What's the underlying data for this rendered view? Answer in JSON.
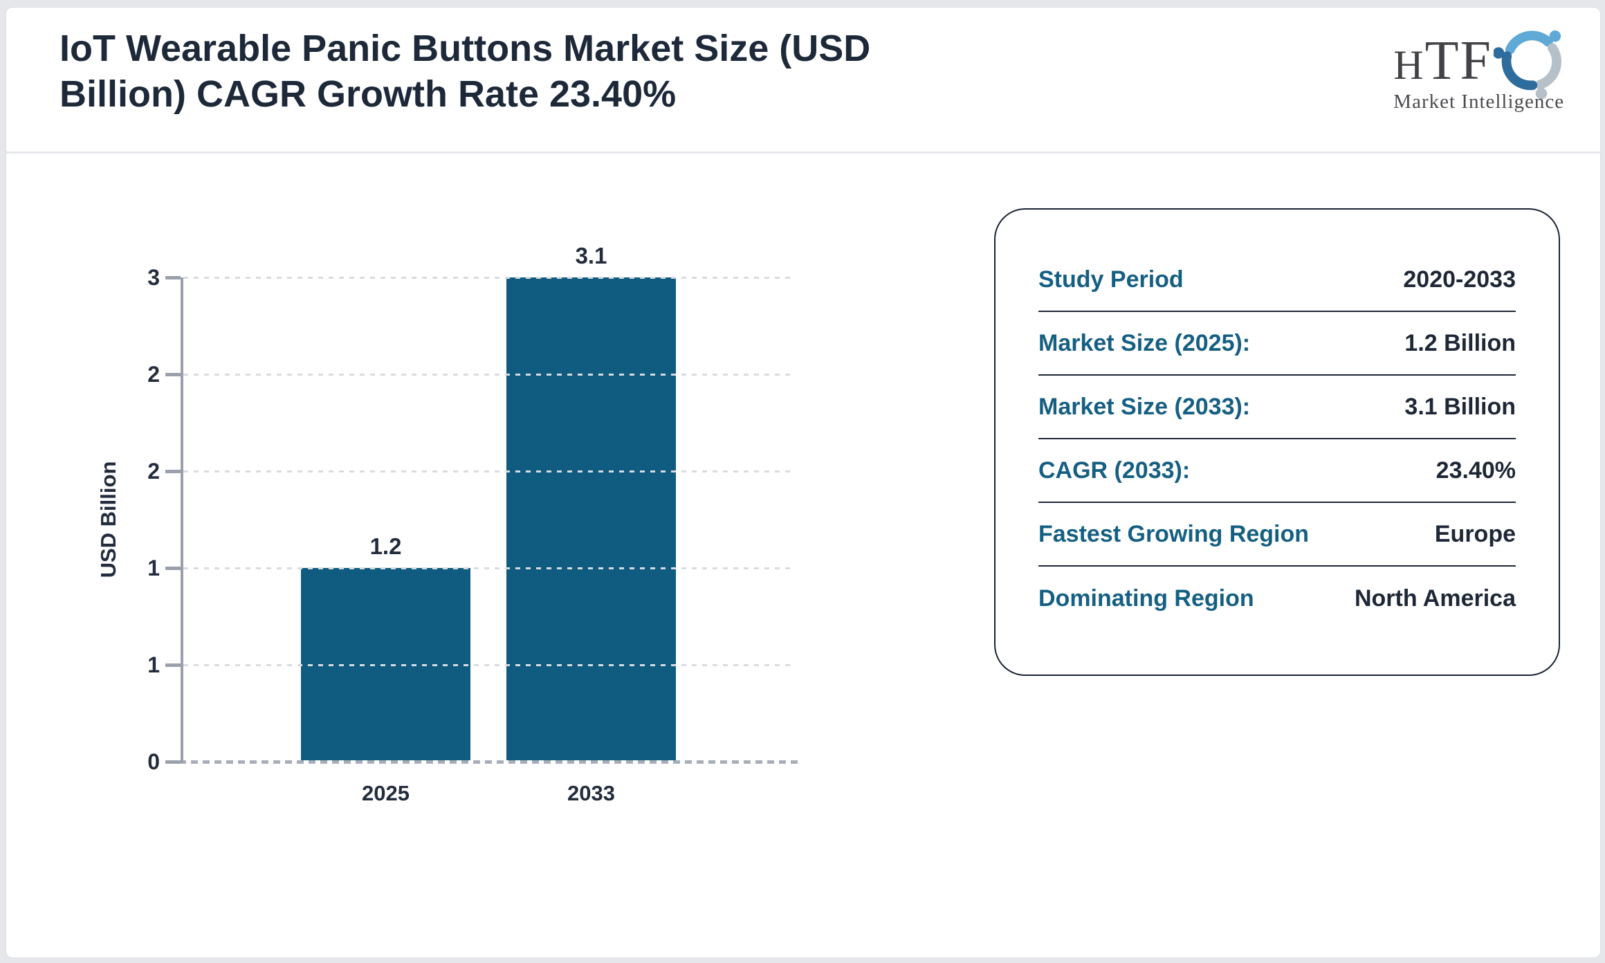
{
  "page": {
    "background": "#e6e7eb",
    "card_background": "#ffffff"
  },
  "header": {
    "title_line1": "IoT Wearable Panic Buttons Market Size (USD",
    "title_line2": "Billion) CAGR Growth Rate 23.40%"
  },
  "logo": {
    "name": "HTF",
    "tagline": "Market Intelligence",
    "icon_colors": [
      "#5ea9d6",
      "#b6c0c9",
      "#2e6c9e"
    ]
  },
  "chart_data": {
    "type": "bar",
    "title": "IoT Wearable Panic Buttons Market Size (USD Billion) CAGR Growth Rate 23.40%",
    "categories": [
      "2025",
      "2033"
    ],
    "values": [
      1.2,
      3.1
    ],
    "bar_labels": [
      "1.2",
      "3.1"
    ],
    "xlabel": "",
    "ylabel": "USD Billion",
    "ylim": [
      0,
      3
    ],
    "ytick_values": [
      3,
      2.4,
      1.8,
      1.2,
      0.6,
      0
    ],
    "ytick_labels": [
      "3",
      "2",
      "2",
      "1",
      "1",
      "0"
    ],
    "bar_color": "#0f5c80",
    "grid": true,
    "grid_style": "dashed",
    "legend_position": "none"
  },
  "info_panel": {
    "rows": [
      {
        "label": "Study Period",
        "value": "2020-2033"
      },
      {
        "label": "Market Size (2025):",
        "value": "1.2 Billion"
      },
      {
        "label": "Market Size (2033):",
        "value": "3.1 Billion"
      },
      {
        "label": "CAGR (2033):",
        "value": "23.40%"
      },
      {
        "label": "Fastest Growing Region",
        "value": "Europe"
      },
      {
        "label": "Dominating Region",
        "value": "North America"
      }
    ],
    "label_color": "#155f82",
    "value_color": "#1d2736",
    "border_color": "#1b2433"
  }
}
